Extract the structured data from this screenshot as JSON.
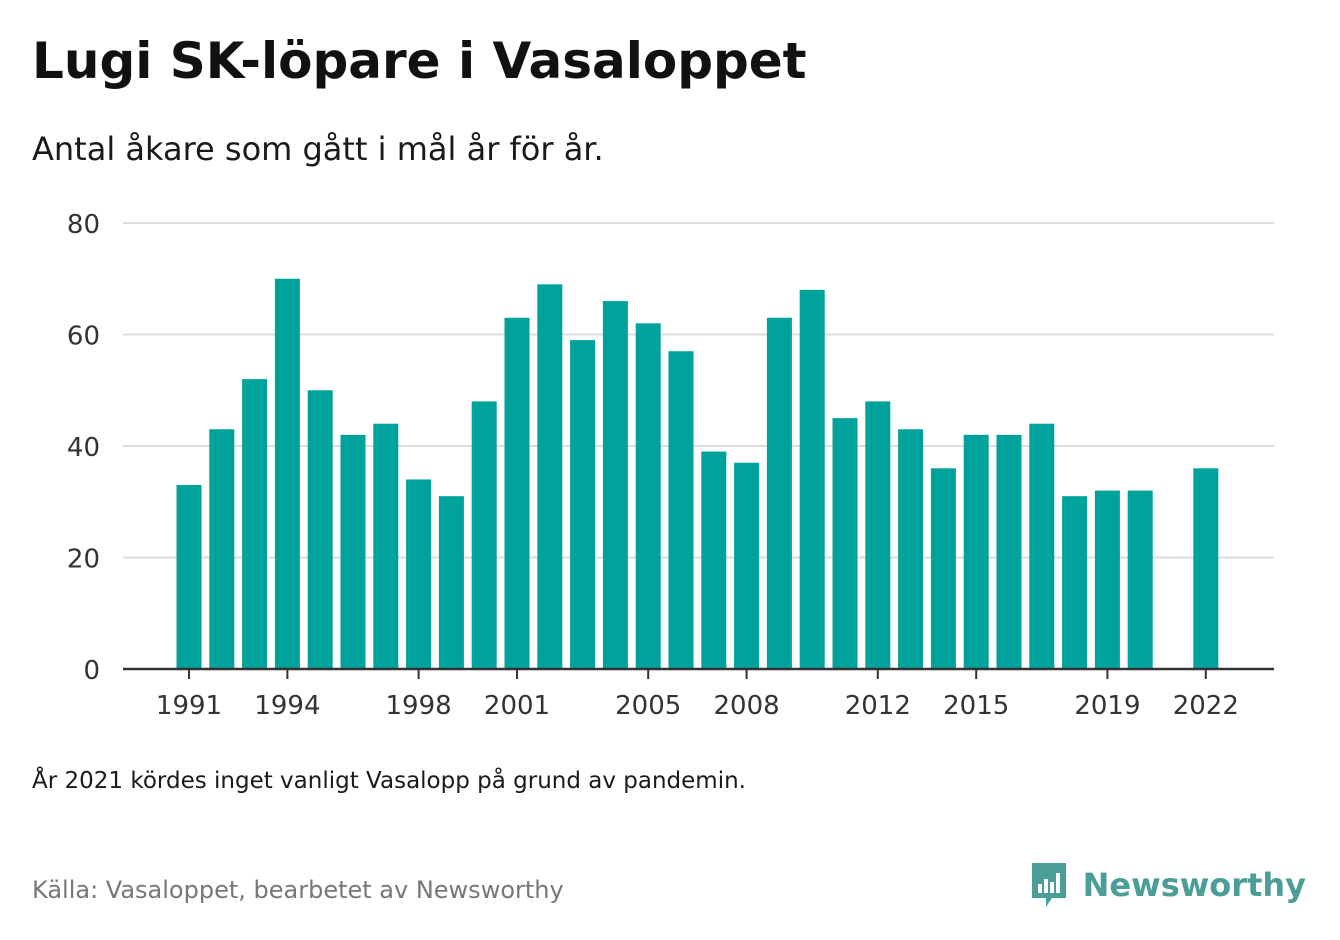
{
  "header": {
    "title": "Lugi SK-löpare i Vasaloppet",
    "subtitle": "Antal åkare som gått i mål år för år."
  },
  "footer": {
    "note": "År 2021 kördes inget vanligt Vasalopp på grund av pandemin.",
    "source": "Källa: Vasaloppet, bearbetet av Newsworthy",
    "logo_text": "Newsworthy"
  },
  "colors": {
    "bar": "#00a39b",
    "grid": "#dddddd",
    "axis": "#333333",
    "logo": "#4a9e97"
  },
  "chart_data": {
    "type": "bar",
    "title": "Lugi SK-löpare i Vasaloppet",
    "subtitle": "Antal åkare som gått i mål år för år.",
    "xlabel": "",
    "ylabel": "",
    "grid": true,
    "ylim": [
      0,
      80
    ],
    "yticks": [
      0,
      20,
      40,
      60,
      80
    ],
    "xticks": [
      "1991",
      "1994",
      "1998",
      "2001",
      "2005",
      "2008",
      "2012",
      "2015",
      "2019",
      "2022"
    ],
    "categories": [
      "1991",
      "1992",
      "1993",
      "1994",
      "1995",
      "1996",
      "1997",
      "1998",
      "1999",
      "2000",
      "2001",
      "2002",
      "2003",
      "2004",
      "2005",
      "2006",
      "2007",
      "2008",
      "2009",
      "2010",
      "2011",
      "2012",
      "2013",
      "2014",
      "2015",
      "2016",
      "2017",
      "2018",
      "2019",
      "2020",
      "2021",
      "2022"
    ],
    "values": [
      33,
      43,
      52,
      70,
      50,
      42,
      44,
      34,
      31,
      48,
      63,
      69,
      59,
      66,
      62,
      57,
      39,
      37,
      63,
      68,
      45,
      48,
      43,
      36,
      42,
      42,
      44,
      31,
      32,
      32,
      null,
      36
    ]
  }
}
